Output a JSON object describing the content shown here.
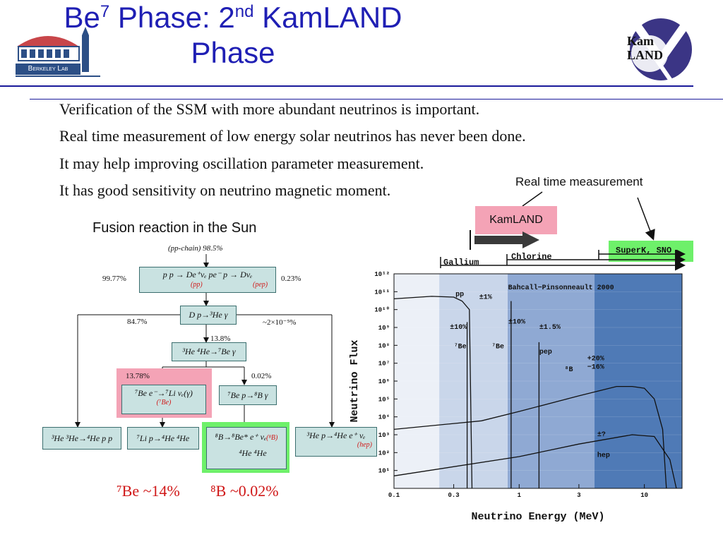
{
  "slide": {
    "title_line1_a": "Be",
    "title_line1_sup1": "7",
    "title_line1_b": " Phase:  2",
    "title_line1_sup2": "nd",
    "title_line1_c": " KamLAND",
    "title_line2": "Phase",
    "logo_left_text": "Berkeley Lab",
    "logo_right_text_1": "Kam",
    "logo_right_text_2": "LAND",
    "bullets": [
      "Verification of the SSM with more abundant neutrinos is important.",
      "Real time measurement of low energy solar neutrinos has never been done.",
      "It may help improving oscillation parameter measurement.",
      "It has good sensitivity on neutrino magnetic moment."
    ]
  },
  "fusion": {
    "heading": "Fusion reaction in the Sun",
    "top_label": "(pp-chain) 98.5%",
    "pct_left_1": "99.77%",
    "pct_right_1": "0.23%",
    "pct_left_2": "84.7%",
    "pct_right_2": "~2×10⁻⁵%",
    "pct_mid": "13.8%",
    "pct_be": "13.78%",
    "pct_b8": "0.02%",
    "box_pp": "p p → De⁺νₑ      pe⁻ p → Dνₑ",
    "box_pp_tag_left": "(pp)",
    "box_pp_tag_right": "(pep)",
    "box_dp": "D p→³He γ",
    "box_he34": "³He ⁴He→⁷Be γ",
    "box_be7": "⁷Be e⁻→⁷Li νₑ(γ)",
    "box_be7_tag": "(⁷Be)",
    "box_bep": "⁷Be p→⁸B γ",
    "box_he33": "³He ³He→⁴He p p",
    "box_li7": "⁷Li p→⁴He ⁴He",
    "box_b8_a": "⁸B→⁸Be* e⁺ νₑ",
    "box_b8_tag": "(⁸B)",
    "box_b8_b": "⁴He ⁴He",
    "box_hep": "³He p→⁴He e⁺ νₑ",
    "box_hep_tag": "(hep)",
    "summary_be": "⁷Be ~14%",
    "summary_b": "⁸B ~0.02%"
  },
  "experiments": {
    "annotation": "Real time measurement",
    "kamland": "KamLAND",
    "gallium": "Gallium",
    "chlorine": "Chlorine",
    "superk": "SuperK, SNO"
  },
  "chart_data": {
    "type": "line",
    "title": "Bahcall−Pinsonneault 2000",
    "xlabel": "Neutrino Energy (MeV)",
    "ylabel": "Neutrino Flux",
    "x_scale": "log",
    "y_scale": "log",
    "xlim": [
      0.1,
      20
    ],
    "ylim": [
      1,
      1000000000000.0
    ],
    "x_tick_labels": [
      {
        "v": 0.1,
        "t": "0.1"
      },
      {
        "v": 0.3,
        "t": "0.3"
      },
      {
        "v": 1,
        "t": "1"
      },
      {
        "v": 3,
        "t": "3"
      },
      {
        "v": 10,
        "t": "10"
      }
    ],
    "y_tick_labels": [
      {
        "e": 12,
        "t": "10¹²"
      },
      {
        "e": 11,
        "t": "10¹¹"
      },
      {
        "e": 10,
        "t": "10¹⁰"
      },
      {
        "e": 9,
        "t": "10⁹"
      },
      {
        "e": 8,
        "t": "10⁸"
      },
      {
        "e": 7,
        "t": "10⁷"
      },
      {
        "e": 6,
        "t": "10⁶"
      },
      {
        "e": 5,
        "t": "10⁵"
      },
      {
        "e": 4,
        "t": "10⁴"
      },
      {
        "e": 3,
        "t": "10³"
      },
      {
        "e": 2,
        "t": "10²"
      },
      {
        "e": 1,
        "t": "10¹"
      }
    ],
    "shaded_regions": [
      {
        "from": 0.23,
        "to": 20,
        "color": "#c9d6ea"
      },
      {
        "from": 0.81,
        "to": 20,
        "color": "#8fa9d3"
      },
      {
        "from": 4.0,
        "to": 20,
        "color": "#4f7ab6"
      }
    ],
    "series": [
      {
        "name": "pp",
        "label": "pp",
        "uncertainty": "±1%",
        "points": [
          [
            0.1,
            40000000000.0
          ],
          [
            0.2,
            55000000000.0
          ],
          [
            0.3,
            50000000000.0
          ],
          [
            0.35,
            30000000000.0
          ],
          [
            0.4,
            10000000000.0
          ],
          [
            0.42,
            1
          ]
        ]
      },
      {
        "name": "7Be_0.38",
        "label": "⁷Be",
        "uncertainty": "±10%",
        "line_at": 0.384,
        "top": 2000000000.0
      },
      {
        "name": "7Be_0.86",
        "label": "⁷Be",
        "uncertainty": "±10%",
        "line_at": 0.862,
        "top": 30000000000.0
      },
      {
        "name": "pep",
        "label": "pep",
        "uncertainty": "±1.5%",
        "line_at": 1.44,
        "top": 150000000.0
      },
      {
        "name": "8B",
        "label": "⁸B",
        "uncertainty": "+20% −16%",
        "points": [
          [
            0.1,
            2000.0
          ],
          [
            0.5,
            6000.0
          ],
          [
            1,
            20000.0
          ],
          [
            3,
            150000.0
          ],
          [
            6,
            500000.0
          ],
          [
            8,
            500000.0
          ],
          [
            10,
            400000.0
          ],
          [
            12,
            100000.0
          ],
          [
            14,
            2000.0
          ],
          [
            15,
            1
          ]
        ]
      },
      {
        "name": "hep",
        "label": "hep",
        "uncertainty": "±?",
        "points": [
          [
            0.1,
            5
          ],
          [
            1,
            60
          ],
          [
            3,
            300
          ],
          [
            8,
            1000.0
          ],
          [
            12,
            800.0
          ],
          [
            16,
            40
          ],
          [
            18,
            1
          ]
        ]
      }
    ]
  }
}
